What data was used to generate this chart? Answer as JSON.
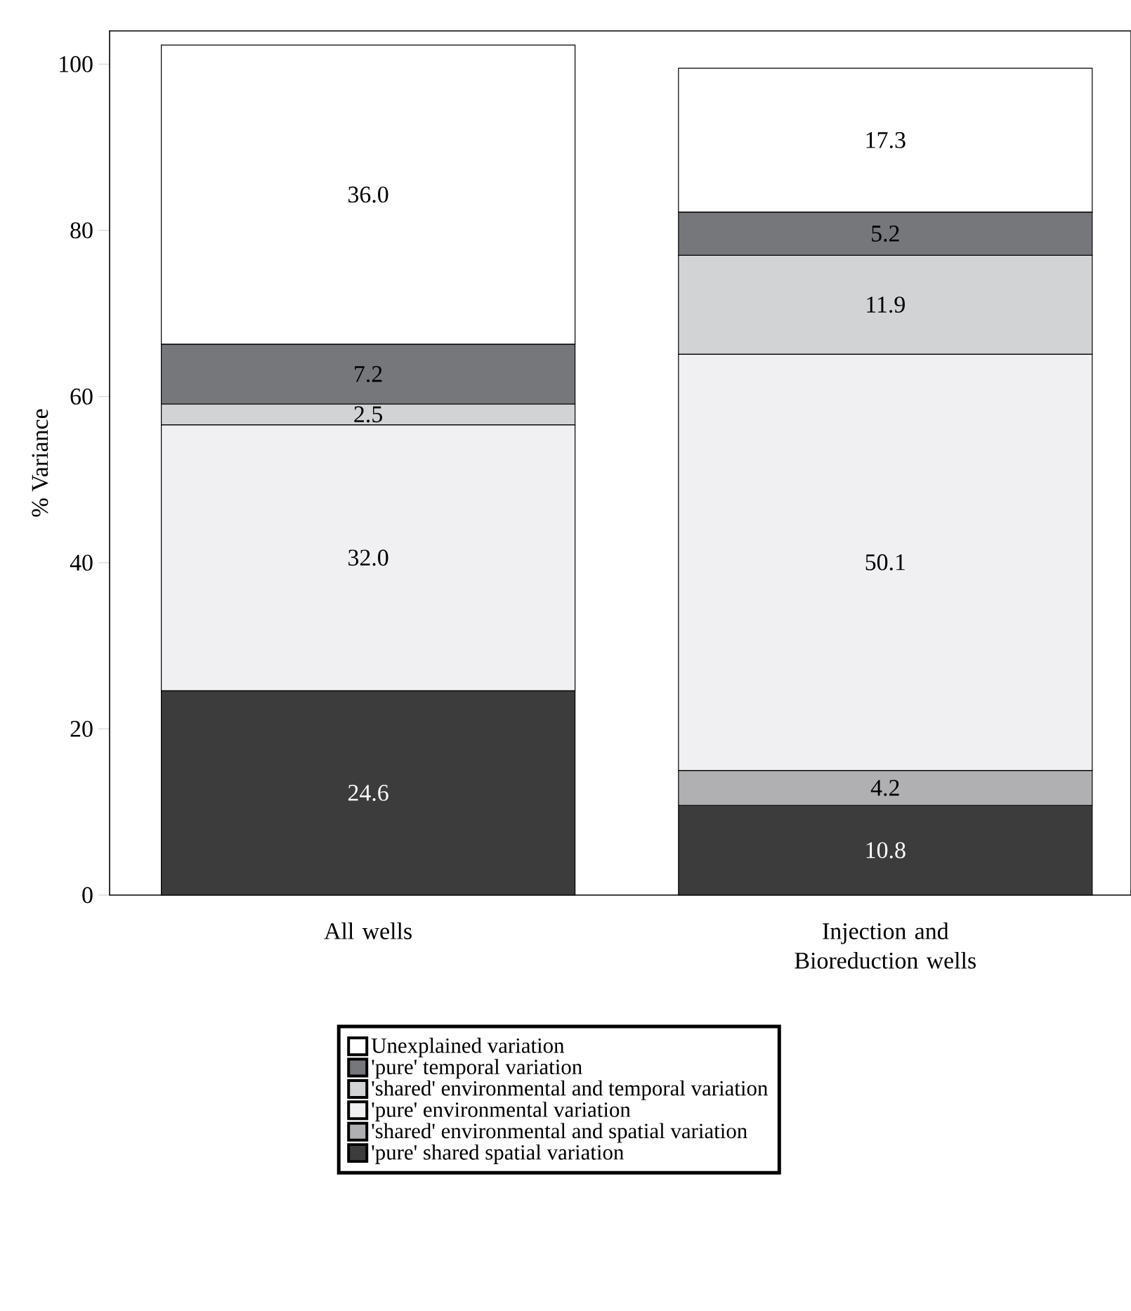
{
  "chart_data": {
    "type": "bar",
    "stacked": true,
    "ylabel": "% Variance",
    "categories": [
      "All wells",
      "Injection and Bioreduction wells"
    ],
    "series": [
      {
        "name": "'pure' shared spatial variation",
        "color": "#3c3c3c",
        "values": [
          24.6,
          10.8
        ],
        "value_labels": [
          "24.6",
          "10.8"
        ]
      },
      {
        "name": "'shared' environmental and spatial variation",
        "color": "#b0b0b2",
        "values": [
          null,
          4.2
        ],
        "value_labels": [
          null,
          "4.2"
        ]
      },
      {
        "name": "'pure' environmental variation",
        "color": "#f0f0f2",
        "values": [
          32.0,
          50.1
        ],
        "value_labels": [
          "32.0",
          "50.1"
        ]
      },
      {
        "name": "'shared' environmental and temporal variation",
        "color": "#d2d3d5",
        "values": [
          2.5,
          11.9
        ],
        "value_labels": [
          "2.5",
          "11.9"
        ]
      },
      {
        "name": "'pure' temporal variation",
        "color": "#76777b",
        "values": [
          7.2,
          5.2
        ],
        "value_labels": [
          "7.2",
          "5.2"
        ]
      },
      {
        "name": "Unexplained variation",
        "color": "#ffffff",
        "values": [
          36.0,
          17.3
        ],
        "value_labels": [
          "36.0",
          "17.3"
        ]
      }
    ],
    "ylim": [
      0,
      104
    ],
    "yticks": [
      0,
      20,
      40,
      60,
      80,
      100
    ],
    "legend": "bottom",
    "grid": false
  }
}
